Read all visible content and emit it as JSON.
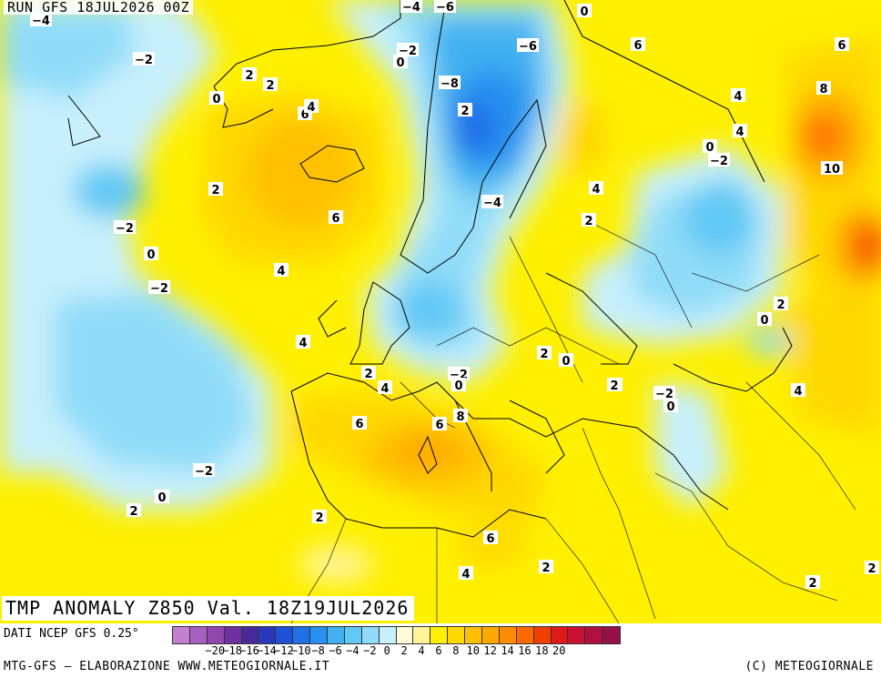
{
  "run_label": "RUN GFS 18JUL2026 00Z",
  "title": "TMP ANOMALY Z850 Val. 18Z19JUL2026",
  "source": "DATI NCEP GFS 0.25°",
  "credit": "MTG-GFS — ELABORAZIONE WWW.METEOGIORNALE.IT",
  "copyright": "(C) METEOGIORNALE",
  "colors": {
    "bins": [
      "#c47fd0",
      "#a860c0",
      "#9048b0",
      "#7030a0",
      "#4a2a9a",
      "#2838b8",
      "#1e50d8",
      "#2070e8",
      "#2890f0",
      "#40b0f0",
      "#60c8f4",
      "#90dcf8",
      "#c8f0fc",
      "#fffbd8",
      "#fff49a",
      "#fff000",
      "#ffd800",
      "#ffc000",
      "#ffa800",
      "#ff8c00",
      "#ff6a00",
      "#f04000",
      "#e01818",
      "#c81030",
      "#b01040",
      "#981048"
    ]
  },
  "legend_ticks": [
    "-20",
    "-18",
    "-16",
    "-14",
    "-12",
    "-10",
    "-8",
    "-6",
    "-4",
    "-2",
    "0",
    "2",
    "4",
    "6",
    "8",
    "10",
    "12",
    "14",
    "16",
    "18",
    "20"
  ],
  "legend_tick_values": [
    -20,
    -18,
    -16,
    -14,
    -12,
    -10,
    -8,
    -6,
    -4,
    -2,
    0,
    2,
    4,
    6,
    8,
    10,
    12,
    14,
    16,
    18,
    20
  ],
  "contour_labels": [
    "-4",
    "-2",
    "2",
    "2",
    "0",
    "6",
    "4",
    "-4",
    "0",
    "-2",
    "-6",
    "-6",
    "-8",
    "2",
    "0",
    "6",
    "4",
    "8",
    "10",
    "4",
    "0",
    "-2",
    "2",
    "6",
    "-2",
    "0",
    "4",
    "-4",
    "4",
    "2",
    "-2",
    "2",
    "4",
    "6",
    "2",
    "4",
    "2",
    "-2",
    "0",
    "0",
    "2",
    "-2",
    "0",
    "2",
    "0",
    "6",
    "8",
    "6",
    "4",
    "-2",
    "0",
    "2",
    "2",
    "6",
    "4",
    "2",
    "2",
    "2"
  ]
}
